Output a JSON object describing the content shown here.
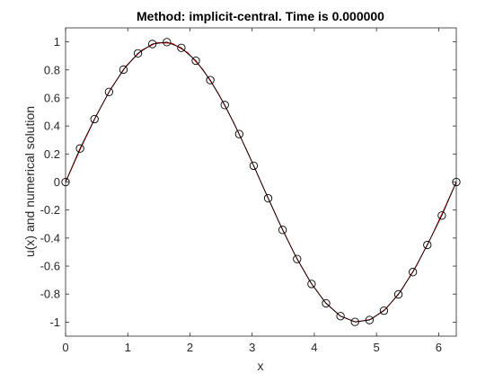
{
  "chart_data": {
    "type": "line",
    "title": "Method: implicit-central. Time is 0.000000",
    "xlabel": "x",
    "ylabel": "u(x) and numerical solution",
    "xlim": [
      0,
      6.283185
    ],
    "ylim": [
      -1.1,
      1.1
    ],
    "x_ticks": [
      0,
      1,
      2,
      3,
      4,
      5,
      6
    ],
    "x_tick_labels": [
      "0",
      "1",
      "2",
      "3",
      "4",
      "5",
      "6"
    ],
    "y_ticks": [
      -1,
      -0.8,
      -0.6,
      -0.4,
      -0.2,
      0,
      0.2,
      0.4,
      0.6,
      0.8,
      1
    ],
    "y_tick_labels": [
      "-1",
      "-0.8",
      "-0.6",
      "-0.4",
      "-0.2",
      "0",
      "0.2",
      "0.4",
      "0.6",
      "0.8",
      "1"
    ],
    "grid": false,
    "legend": "none",
    "series": [
      {
        "style": "red solid line",
        "color": "#ff0000",
        "x": [
          0,
          0.2454,
          0.4909,
          0.7363,
          0.9817,
          1.2272,
          1.4726,
          1.7181,
          1.9635,
          2.2089,
          2.4544,
          2.6998,
          2.9452,
          3.1907,
          3.4361,
          3.6816,
          3.927,
          4.1724,
          4.4179,
          4.6633,
          4.9087,
          5.1542,
          5.3996,
          5.645,
          5.8905,
          6.1359,
          6.2832
        ],
        "y": [
          0,
          0.243,
          0.4714,
          0.6716,
          0.8315,
          0.9415,
          0.9952,
          0.9892,
          0.9239,
          0.8032,
          0.6344,
          0.4276,
          0.1951,
          -0.0491,
          -0.2903,
          -0.5141,
          -0.7071,
          -0.8577,
          -0.9569,
          -0.9988,
          -0.9808,
          -0.904,
          -0.773,
          -0.5956,
          -0.3827,
          -0.1467,
          0
        ]
      },
      {
        "style": "black solid line with open circle markers",
        "color": "#000000",
        "marker": "circle",
        "x": [
          0,
          0.2327,
          0.4654,
          0.6981,
          0.9308,
          1.1636,
          1.3963,
          1.629,
          1.8617,
          2.0944,
          2.3271,
          2.5598,
          2.7925,
          3.0252,
          3.2579,
          3.4907,
          3.7234,
          3.9561,
          4.1888,
          4.4215,
          4.6542,
          4.8869,
          5.1196,
          5.3523,
          5.5851,
          5.8178,
          6.0505,
          6.2832
        ],
        "y": [
          0,
          0.2393,
          0.4488,
          0.6427,
          0.8021,
          0.9182,
          0.9848,
          0.9982,
          0.9573,
          0.866,
          0.7274,
          0.5495,
          0.342,
          0.1161,
          -0.1161,
          -0.342,
          -0.5495,
          -0.7274,
          -0.866,
          -0.9573,
          -0.9982,
          -0.9848,
          -0.9182,
          -0.8021,
          -0.6427,
          -0.4488,
          -0.2393,
          0
        ]
      }
    ]
  }
}
